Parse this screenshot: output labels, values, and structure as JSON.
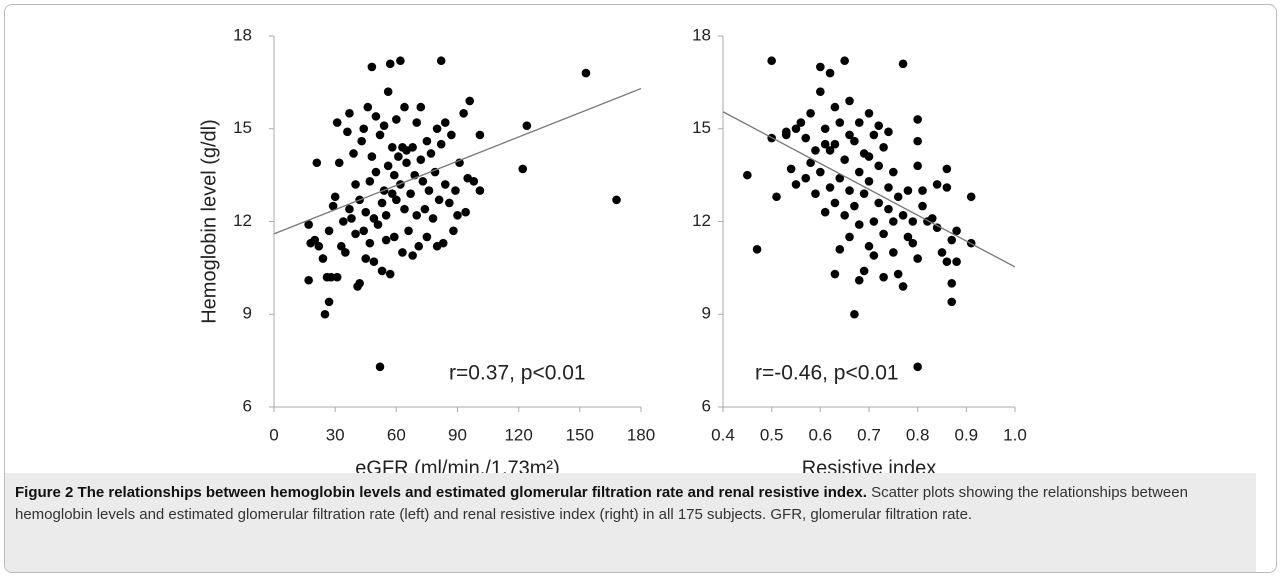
{
  "chart_data": [
    {
      "type": "scatter",
      "xlabel": "eGFR (ml/min./1.73m²)",
      "ylabel": "Hemoglobin level (g/dl)",
      "annotation": "r=0.37, p<0.01",
      "color": "#000000",
      "x": [
        17,
        18,
        17,
        20,
        21,
        22,
        24,
        25,
        26,
        27,
        27,
        28,
        29,
        30,
        31,
        31,
        32,
        33,
        34,
        35,
        36,
        37,
        37,
        38,
        39,
        40,
        40,
        41,
        42,
        42,
        43,
        44,
        44,
        45,
        45,
        46,
        47,
        47,
        48,
        48,
        49,
        49,
        50,
        50,
        51,
        52,
        52,
        53,
        53,
        54,
        54,
        55,
        55,
        56,
        56,
        57,
        57,
        58,
        58,
        59,
        59,
        60,
        60,
        61,
        62,
        62,
        63,
        63,
        64,
        64,
        65,
        65,
        66,
        67,
        68,
        68,
        69,
        70,
        70,
        71,
        72,
        72,
        73,
        74,
        75,
        75,
        76,
        77,
        78,
        79,
        80,
        80,
        81,
        82,
        82,
        83,
        84,
        84,
        86,
        87,
        88,
        89,
        90,
        91,
        93,
        94,
        95,
        96,
        98,
        101,
        101,
        122,
        124,
        153,
        168
      ],
      "values": [
        11.9,
        11.3,
        10.1,
        11.4,
        13.9,
        11.2,
        10.8,
        9.0,
        10.2,
        9.4,
        11.7,
        10.2,
        12.5,
        12.8,
        10.2,
        15.2,
        13.9,
        11.2,
        12.0,
        11.0,
        14.9,
        12.4,
        15.5,
        12.1,
        14.2,
        11.6,
        13.2,
        9.9,
        10.0,
        12.7,
        14.6,
        11.7,
        15.0,
        10.8,
        12.3,
        15.7,
        11.3,
        13.3,
        17.0,
        14.1,
        12.1,
        10.7,
        15.4,
        13.6,
        11.9,
        7.3,
        14.8,
        12.6,
        10.4,
        13.0,
        15.1,
        11.4,
        12.2,
        16.2,
        13.8,
        17.1,
        10.3,
        12.9,
        14.4,
        13.5,
        11.5,
        15.3,
        12.7,
        14.1,
        17.2,
        13.2,
        11.0,
        14.4,
        12.4,
        15.7,
        13.9,
        14.3,
        11.7,
        12.9,
        14.4,
        10.9,
        13.5,
        15.2,
        12.2,
        11.2,
        14.0,
        15.7,
        13.3,
        12.4,
        14.6,
        11.5,
        13.0,
        14.2,
        12.1,
        13.6,
        15.0,
        11.2,
        12.7,
        17.2,
        14.5,
        11.3,
        15.2,
        13.2,
        12.6,
        14.8,
        11.7,
        13.0,
        12.2,
        13.9,
        15.5,
        12.3,
        13.4,
        15.9,
        13.3,
        14.8,
        13.0,
        13.7,
        15.1,
        16.8,
        12.7
      ],
      "trendline": {
        "x": [
          0,
          180
        ],
        "values": [
          11.6,
          16.3
        ],
        "color": "#777777"
      },
      "xlim": [
        0,
        180
      ],
      "xticks": [
        0,
        30,
        60,
        90,
        120,
        150,
        180
      ],
      "ylim": [
        6,
        18
      ],
      "yticks": [
        6,
        9,
        12,
        15,
        18
      ]
    },
    {
      "type": "scatter",
      "xlabel": "Resistive index",
      "annotation": "r=-0.46, p<0.01",
      "color": "#000000",
      "x": [
        0.45,
        0.47,
        0.5,
        0.5,
        0.51,
        0.53,
        0.54,
        0.55,
        0.55,
        0.56,
        0.57,
        0.57,
        0.58,
        0.58,
        0.59,
        0.59,
        0.6,
        0.6,
        0.6,
        0.61,
        0.61,
        0.62,
        0.62,
        0.62,
        0.63,
        0.63,
        0.63,
        0.63,
        0.64,
        0.64,
        0.64,
        0.65,
        0.65,
        0.65,
        0.66,
        0.66,
        0.66,
        0.67,
        0.67,
        0.67,
        0.68,
        0.68,
        0.68,
        0.68,
        0.69,
        0.69,
        0.69,
        0.7,
        0.7,
        0.7,
        0.71,
        0.71,
        0.71,
        0.72,
        0.72,
        0.72,
        0.73,
        0.73,
        0.73,
        0.74,
        0.74,
        0.74,
        0.75,
        0.75,
        0.76,
        0.76,
        0.77,
        0.77,
        0.77,
        0.78,
        0.78,
        0.79,
        0.79,
        0.8,
        0.8,
        0.8,
        0.8,
        0.8,
        0.81,
        0.81,
        0.82,
        0.83,
        0.84,
        0.84,
        0.85,
        0.86,
        0.86,
        0.86,
        0.87,
        0.87,
        0.87,
        0.88,
        0.88,
        0.91,
        0.91,
        0.53,
        0.61,
        0.66,
        0.7,
        0.75
      ],
      "values": [
        13.5,
        11.1,
        17.2,
        14.7,
        12.8,
        14.8,
        13.7,
        15.0,
        13.2,
        15.2,
        14.7,
        13.4,
        15.5,
        13.9,
        14.3,
        12.9,
        17.0,
        16.2,
        13.6,
        15.0,
        12.3,
        16.8,
        14.3,
        13.1,
        15.7,
        14.5,
        12.6,
        10.3,
        15.2,
        13.4,
        11.1,
        17.2,
        14.0,
        12.2,
        15.9,
        13.0,
        11.5,
        9.0,
        14.6,
        12.5,
        15.2,
        13.6,
        10.1,
        11.9,
        14.2,
        12.9,
        10.4,
        15.5,
        13.3,
        11.2,
        14.8,
        12.0,
        10.9,
        15.1,
        13.8,
        12.6,
        14.4,
        11.6,
        10.2,
        14.9,
        13.1,
        12.4,
        13.6,
        11.0,
        12.8,
        10.3,
        17.1,
        12.2,
        9.9,
        13.0,
        11.5,
        12.0,
        11.3,
        15.3,
        14.6,
        13.8,
        7.3,
        10.8,
        13.0,
        12.5,
        12.0,
        12.1,
        13.2,
        11.8,
        11.0,
        13.7,
        13.1,
        10.7,
        9.4,
        10.0,
        11.4,
        10.7,
        11.7,
        12.8,
        11.3,
        14.9,
        14.5,
        14.8,
        14.1,
        12.0
      ],
      "trendline": {
        "x": [
          0.4,
          1.0
        ],
        "values": [
          15.55,
          10.53
        ],
        "color": "#777777"
      },
      "xlim": [
        0.4,
        1.0
      ],
      "xticks": [
        0.4,
        0.5,
        0.6,
        0.7,
        0.8,
        0.9,
        {
          "value": 1.0,
          "label": "1.0"
        }
      ],
      "ylim": [
        6,
        18
      ],
      "yticks": [
        6,
        9,
        12,
        15,
        18
      ]
    }
  ],
  "caption": {
    "label": "Figure 2",
    "title": "The relationships between hemoglobin levels and estimated glomerular filtration rate and renal resistive index.",
    "text": "Scatter plots showing the relationships between hemoglobin levels and estimated glomerular filtration rate (left) and renal resistive index (right) in all 175 subjects. GFR, glomerular filtration rate."
  }
}
